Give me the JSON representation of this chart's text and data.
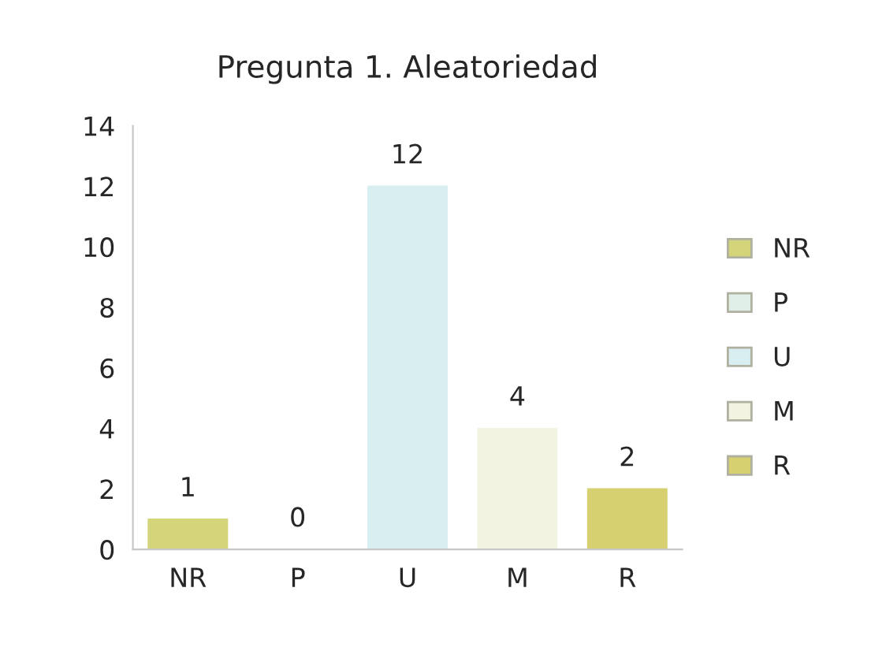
{
  "chart_data": {
    "type": "bar",
    "title": "Pregunta 1. Aleatoriedad",
    "categories": [
      "NR",
      "P",
      "U",
      "M",
      "R"
    ],
    "series": [
      {
        "name": "NR",
        "color": "#d4d47a",
        "values": [
          1,
          null,
          null,
          null,
          null
        ]
      },
      {
        "name": "P",
        "color": "#e0f0e8",
        "values": [
          null,
          0,
          null,
          null,
          null
        ]
      },
      {
        "name": "U",
        "color": "#d8eef0",
        "values": [
          null,
          null,
          12,
          null,
          null
        ]
      },
      {
        "name": "M",
        "color": "#f3f3e2",
        "values": [
          null,
          null,
          null,
          4,
          null
        ]
      },
      {
        "name": "R",
        "color": "#d6d070",
        "values": [
          null,
          null,
          null,
          null,
          2
        ]
      }
    ],
    "ylim": [
      0,
      14
    ],
    "yticks": [
      0,
      2,
      4,
      6,
      8,
      10,
      12,
      14
    ],
    "data_labels": true,
    "legend": "right",
    "grid": false
  }
}
